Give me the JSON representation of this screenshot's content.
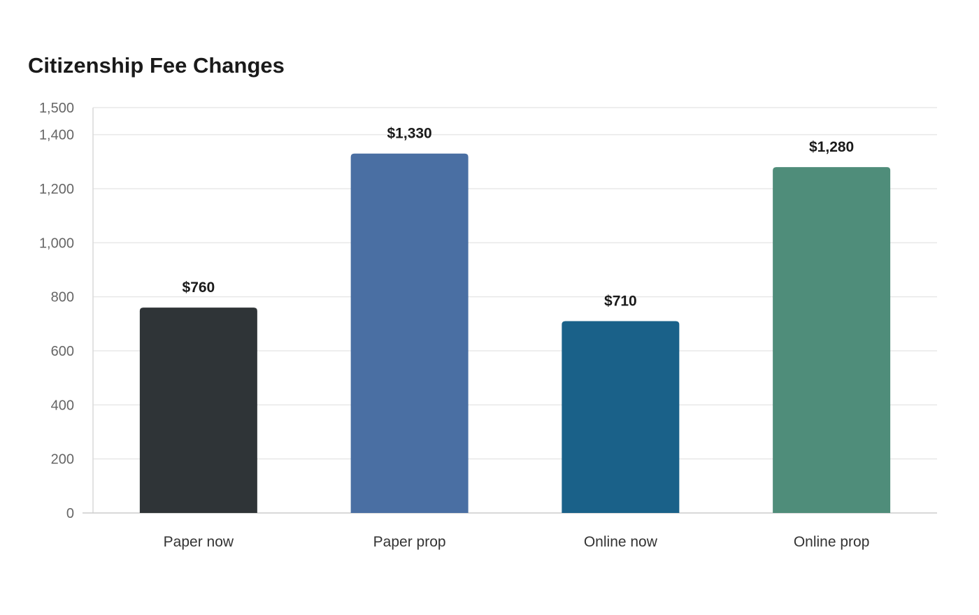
{
  "chart_data": {
    "type": "bar",
    "title": "Citizenship Fee Changes",
    "categories": [
      "Paper now",
      "Paper prop",
      "Online now",
      "Online prop"
    ],
    "values": [
      760,
      1330,
      710,
      1280
    ],
    "data_labels": [
      "$760",
      "$1,330",
      "$710",
      "$1,280"
    ],
    "bar_colors": [
      "#2f3437",
      "#4a6fa3",
      "#1a6189",
      "#4f8d7a"
    ],
    "y_ticks": [
      0,
      200,
      400,
      600,
      800,
      1000,
      1200,
      1400,
      1500
    ],
    "y_tick_labels": [
      "0",
      "200",
      "400",
      "600",
      "800",
      "1,000",
      "1,200",
      "1,400",
      "1,500"
    ],
    "ylim": [
      0,
      1500
    ],
    "xlabel": "",
    "ylabel": "",
    "grid": true,
    "legend": "none"
  }
}
